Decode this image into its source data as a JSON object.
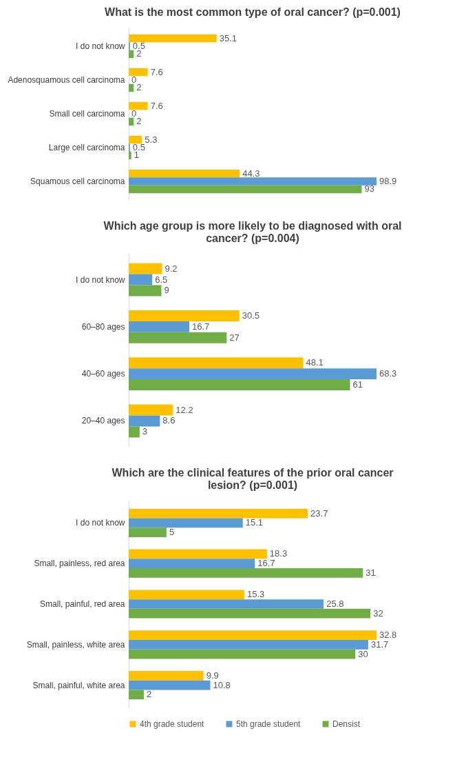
{
  "chart_data": [
    {
      "type": "bar",
      "orientation": "horizontal",
      "title": "What is the most common type of oral cancer? (p=0.001)",
      "categories": [
        "I do not know",
        "Adenosquamous cell carcinoma",
        "Small cell carcinoma",
        "Large cell carcinoma",
        "Squamous cell carcinoma"
      ],
      "series": [
        {
          "color": "#ffc000",
          "values": [
            35.1,
            7.6,
            7.6,
            5.3,
            44.3
          ]
        },
        {
          "color": "#5b9bd5",
          "values": [
            0.5,
            0,
            0,
            0.5,
            98.9
          ]
        },
        {
          "color": "#70ad47",
          "values": [
            2,
            2,
            2,
            1,
            93
          ]
        }
      ],
      "data_labels": true
    },
    {
      "type": "bar",
      "orientation": "horizontal",
      "title": "Which age group is more likely to be diagnosed with oral cancer? (p=0.004)",
      "categories": [
        "I do not know",
        "60–80 ages",
        "40–60 ages",
        "20–40 ages"
      ],
      "series": [
        {
          "color": "#ffc000",
          "values": [
            9.2,
            30.5,
            48.1,
            12.2
          ]
        },
        {
          "color": "#5b9bd5",
          "values": [
            6.5,
            16.7,
            68.3,
            8.6
          ]
        },
        {
          "color": "#70ad47",
          "values": [
            9,
            27,
            61,
            3
          ]
        }
      ],
      "data_labels": true
    },
    {
      "type": "bar",
      "orientation": "horizontal",
      "title": "Which are the clinical features of the prior oral cancer lesion? (p=0.001)",
      "categories": [
        "I do not know",
        "Small, painless, red area",
        "Small, painful, red area",
        "Small, painless, white area",
        "Small, painful, white area"
      ],
      "series": [
        {
          "name": "4th grade student",
          "color": "#ffc000",
          "values": [
            23.7,
            18.3,
            15.3,
            32.8,
            9.9
          ]
        },
        {
          "name": "5th grade student",
          "color": "#5b9bd5",
          "values": [
            15.1,
            16.7,
            25.8,
            31.7,
            10.8
          ]
        },
        {
          "name": "Densist",
          "color": "#70ad47",
          "values": [
            5,
            31,
            32,
            30,
            2
          ]
        }
      ],
      "data_labels": true,
      "legend": "bottom"
    }
  ]
}
